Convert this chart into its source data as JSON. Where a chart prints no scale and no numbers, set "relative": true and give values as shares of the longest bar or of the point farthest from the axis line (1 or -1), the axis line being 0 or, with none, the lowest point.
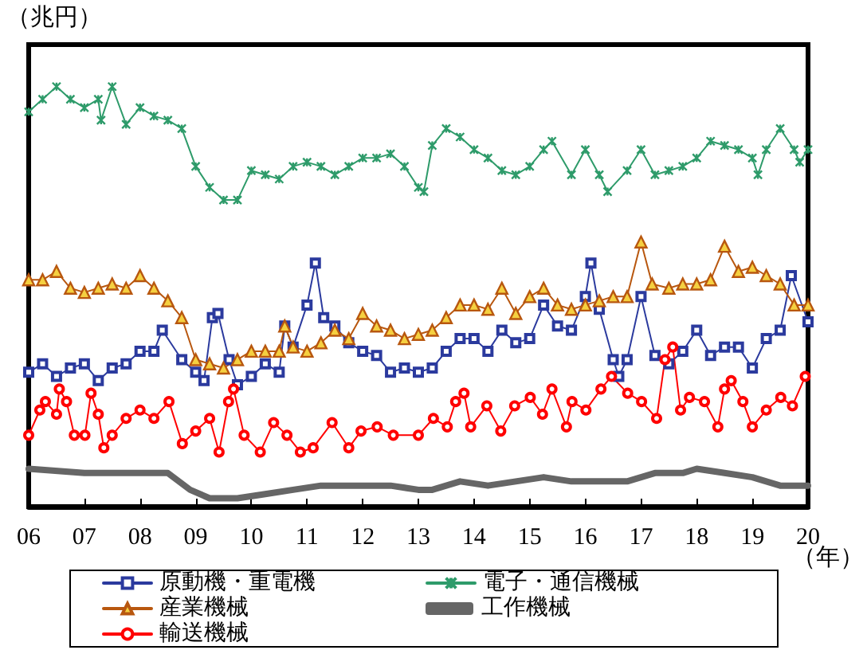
{
  "chart_data": {
    "type": "line",
    "relative": true,
    "ylabel": "（兆円）",
    "xlabel": "（年）",
    "xlim": [
      2006,
      2020
    ],
    "xticks": [
      {
        "value": 2006,
        "label": "06"
      },
      {
        "value": 2007,
        "label": "07"
      },
      {
        "value": 2008,
        "label": "08"
      },
      {
        "value": 2009,
        "label": "09"
      },
      {
        "value": 2010,
        "label": "10"
      },
      {
        "value": 2011,
        "label": "11"
      },
      {
        "value": 2012,
        "label": "12"
      },
      {
        "value": 2013,
        "label": "13"
      },
      {
        "value": 2014,
        "label": "14"
      },
      {
        "value": 2015,
        "label": "15"
      },
      {
        "value": 2016,
        "label": "16"
      },
      {
        "value": 2017,
        "label": "17"
      },
      {
        "value": 2018,
        "label": "18"
      },
      {
        "value": 2019,
        "label": "19"
      },
      {
        "value": 2020,
        "label": "20"
      }
    ],
    "grid": false,
    "legend": "bottom",
    "line_style": "solid",
    "tick_labels": "x",
    "series": [
      {
        "name": "原動機・重電機",
        "color": "#2b3a9e",
        "marker": "square",
        "x": [
          2006,
          2006.25,
          2006.5,
          2006.75,
          2007,
          2007.25,
          2007.5,
          2007.75,
          2008,
          2008.25,
          2008.4,
          2008.75,
          2009,
          2009.15,
          2009.3,
          2009.4,
          2009.6,
          2009.75,
          2010,
          2010.25,
          2010.5,
          2010.6,
          2010.75,
          2011,
          2011.15,
          2011.3,
          2011.5,
          2011.75,
          2012,
          2012.25,
          2012.5,
          2012.75,
          2013,
          2013.25,
          2013.5,
          2013.75,
          2014,
          2014.25,
          2014.5,
          2014.75,
          2015,
          2015.25,
          2015.5,
          2015.75,
          2016,
          2016.1,
          2016.25,
          2016.5,
          2016.6,
          2016.75,
          2017,
          2017.25,
          2017.5,
          2017.75,
          2018,
          2018.25,
          2018.5,
          2018.75,
          2019,
          2019.25,
          2019.5,
          2019.7,
          2020
        ],
        "values": [
          0.32,
          0.34,
          0.31,
          0.33,
          0.34,
          0.3,
          0.33,
          0.34,
          0.37,
          0.37,
          0.42,
          0.35,
          0.32,
          0.3,
          0.45,
          0.46,
          0.35,
          0.29,
          0.31,
          0.34,
          0.32,
          0.43,
          0.38,
          0.48,
          0.58,
          0.45,
          0.43,
          0.39,
          0.37,
          0.36,
          0.32,
          0.33,
          0.32,
          0.33,
          0.37,
          0.4,
          0.4,
          0.37,
          0.42,
          0.39,
          0.4,
          0.48,
          0.43,
          0.42,
          0.5,
          0.58,
          0.47,
          0.35,
          0.31,
          0.35,
          0.5,
          0.36,
          0.34,
          0.37,
          0.42,
          0.36,
          0.38,
          0.38,
          0.33,
          0.4,
          0.42,
          0.55,
          0.44
        ]
      },
      {
        "name": "電子・通信機械",
        "color": "#2e9b6a",
        "marker": "cross",
        "x": [
          2006,
          2006.25,
          2006.5,
          2006.75,
          2007,
          2007.25,
          2007.3,
          2007.5,
          2007.75,
          2008,
          2008.25,
          2008.5,
          2008.75,
          2009,
          2009.25,
          2009.5,
          2009.75,
          2010,
          2010.25,
          2010.5,
          2010.75,
          2011,
          2011.25,
          2011.5,
          2011.75,
          2012,
          2012.25,
          2012.5,
          2012.75,
          2013,
          2013.1,
          2013.25,
          2013.5,
          2013.75,
          2014,
          2014.25,
          2014.5,
          2014.75,
          2015,
          2015.25,
          2015.4,
          2015.75,
          2016,
          2016.25,
          2016.4,
          2016.75,
          2017,
          2017.25,
          2017.5,
          2017.75,
          2018,
          2018.25,
          2018.5,
          2018.75,
          2019,
          2019.1,
          2019.25,
          2019.5,
          2019.75,
          2019.85,
          2020
        ],
        "values": [
          0.94,
          0.97,
          1.0,
          0.97,
          0.95,
          0.97,
          0.92,
          1.0,
          0.91,
          0.95,
          0.93,
          0.92,
          0.9,
          0.81,
          0.76,
          0.73,
          0.73,
          0.8,
          0.79,
          0.78,
          0.81,
          0.82,
          0.81,
          0.79,
          0.81,
          0.83,
          0.83,
          0.84,
          0.81,
          0.76,
          0.75,
          0.86,
          0.9,
          0.88,
          0.85,
          0.83,
          0.8,
          0.79,
          0.81,
          0.85,
          0.87,
          0.79,
          0.85,
          0.79,
          0.75,
          0.8,
          0.85,
          0.79,
          0.8,
          0.81,
          0.83,
          0.87,
          0.86,
          0.85,
          0.83,
          0.79,
          0.85,
          0.9,
          0.85,
          0.82,
          0.85
        ]
      },
      {
        "name": "産業機械",
        "color": "#b8570f",
        "marker": "triangle",
        "x": [
          2006,
          2006.25,
          2006.5,
          2006.75,
          2007,
          2007.25,
          2007.5,
          2007.75,
          2008,
          2008.25,
          2008.5,
          2008.75,
          2009,
          2009.25,
          2009.5,
          2009.75,
          2010,
          2010.25,
          2010.5,
          2010.6,
          2010.75,
          2011,
          2011.25,
          2011.5,
          2011.75,
          2012,
          2012.25,
          2012.5,
          2012.75,
          2013,
          2013.25,
          2013.5,
          2013.75,
          2014,
          2014.25,
          2014.5,
          2014.75,
          2015,
          2015.25,
          2015.5,
          2015.75,
          2016,
          2016.25,
          2016.5,
          2016.75,
          2017,
          2017.2,
          2017.5,
          2017.75,
          2018,
          2018.25,
          2018.5,
          2018.75,
          2019,
          2019.25,
          2019.5,
          2019.75,
          2020
        ],
        "values": [
          0.54,
          0.54,
          0.56,
          0.52,
          0.51,
          0.52,
          0.53,
          0.52,
          0.55,
          0.52,
          0.49,
          0.45,
          0.35,
          0.34,
          0.33,
          0.35,
          0.37,
          0.37,
          0.37,
          0.43,
          0.38,
          0.37,
          0.39,
          0.42,
          0.4,
          0.46,
          0.43,
          0.42,
          0.4,
          0.41,
          0.42,
          0.45,
          0.48,
          0.48,
          0.47,
          0.52,
          0.46,
          0.5,
          0.52,
          0.48,
          0.47,
          0.48,
          0.49,
          0.5,
          0.5,
          0.63,
          0.53,
          0.52,
          0.53,
          0.53,
          0.54,
          0.62,
          0.56,
          0.57,
          0.55,
          0.53,
          0.48,
          0.48
        ]
      },
      {
        "name": "工作機械",
        "color": "#666666",
        "marker": "none",
        "x": [
          2006,
          2007,
          2007.5,
          2008,
          2008.5,
          2008.9,
          2009.25,
          2009.75,
          2010.25,
          2010.75,
          2011.25,
          2012,
          2012.5,
          2013,
          2013.25,
          2013.75,
          2014.25,
          2014.75,
          2015.25,
          2015.75,
          2016.25,
          2016.75,
          2017.25,
          2017.75,
          2018,
          2018.5,
          2019,
          2019.5,
          2020
        ],
        "values": [
          0.09,
          0.08,
          0.08,
          0.08,
          0.08,
          0.04,
          0.02,
          0.02,
          0.03,
          0.04,
          0.05,
          0.05,
          0.05,
          0.04,
          0.04,
          0.06,
          0.05,
          0.06,
          0.07,
          0.06,
          0.06,
          0.06,
          0.08,
          0.08,
          0.09,
          0.08,
          0.07,
          0.05,
          0.05
        ]
      },
      {
        "name": "輸送機械",
        "color": "#ff0000",
        "marker": "circle",
        "x": [
          2006,
          2006.2,
          2006.3,
          2006.5,
          2006.55,
          2006.68,
          2006.82,
          2007.01,
          2007.12,
          2007.25,
          2007.35,
          2007.5,
          2007.75,
          2008,
          2008.25,
          2008.52,
          2008.76,
          2009,
          2009.25,
          2009.42,
          2009.59,
          2009.68,
          2009.87,
          2010.16,
          2010.4,
          2010.64,
          2010.88,
          2011.11,
          2011.45,
          2011.75,
          2011.97,
          2012.26,
          2012.55,
          2013,
          2013.27,
          2013.52,
          2013.67,
          2013.82,
          2013.94,
          2014.23,
          2014.48,
          2014.73,
          2015.01,
          2015.23,
          2015.4,
          2015.66,
          2015.76,
          2016.01,
          2016.28,
          2016.47,
          2016.76,
          2017.01,
          2017.28,
          2017.43,
          2017.57,
          2017.71,
          2017.87,
          2018.14,
          2018.38,
          2018.5,
          2018.62,
          2018.83,
          2019,
          2019.25,
          2019.51,
          2019.72,
          2019.95
        ],
        "values": [
          0.17,
          0.23,
          0.25,
          0.22,
          0.28,
          0.25,
          0.17,
          0.17,
          0.27,
          0.22,
          0.14,
          0.17,
          0.21,
          0.23,
          0.21,
          0.25,
          0.15,
          0.18,
          0.21,
          0.13,
          0.25,
          0.28,
          0.17,
          0.13,
          0.2,
          0.17,
          0.13,
          0.14,
          0.2,
          0.14,
          0.18,
          0.19,
          0.17,
          0.17,
          0.21,
          0.19,
          0.25,
          0.27,
          0.19,
          0.24,
          0.18,
          0.24,
          0.26,
          0.22,
          0.28,
          0.19,
          0.25,
          0.23,
          0.28,
          0.31,
          0.27,
          0.25,
          0.21,
          0.35,
          0.38,
          0.23,
          0.26,
          0.25,
          0.19,
          0.28,
          0.3,
          0.25,
          0.19,
          0.23,
          0.26,
          0.24,
          0.31
        ]
      }
    ]
  }
}
